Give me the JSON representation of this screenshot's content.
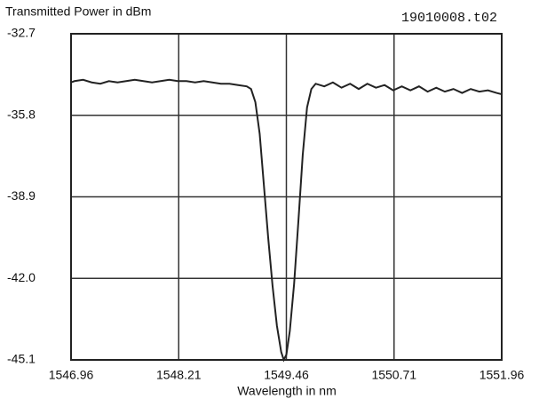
{
  "chart_data": {
    "type": "line",
    "title": "Transmitted Power in dBm",
    "subtitle": "19010008.t02",
    "xlabel": "Wavelength in nm",
    "color": "#222222",
    "grid": true,
    "x": [
      1546.96,
      1547.0,
      1547.1,
      1547.2,
      1547.3,
      1547.4,
      1547.5,
      1547.6,
      1547.7,
      1547.8,
      1547.9,
      1548.0,
      1548.1,
      1548.2,
      1548.3,
      1548.4,
      1548.5,
      1548.6,
      1548.7,
      1548.8,
      1548.9,
      1549.0,
      1549.05,
      1549.1,
      1549.15,
      1549.2,
      1549.25,
      1549.3,
      1549.35,
      1549.4,
      1549.43,
      1549.46,
      1549.5,
      1549.55,
      1549.6,
      1549.65,
      1549.7,
      1549.75,
      1549.8,
      1549.9,
      1550.0,
      1550.1,
      1550.2,
      1550.3,
      1550.4,
      1550.5,
      1550.6,
      1550.7,
      1550.8,
      1550.9,
      1551.0,
      1551.1,
      1551.2,
      1551.3,
      1551.4,
      1551.5,
      1551.6,
      1551.7,
      1551.8,
      1551.9,
      1551.96
    ],
    "values": [
      -34.55,
      -34.5,
      -34.45,
      -34.55,
      -34.6,
      -34.5,
      -34.55,
      -34.5,
      -34.45,
      -34.5,
      -34.55,
      -34.5,
      -34.45,
      -34.5,
      -34.5,
      -34.55,
      -34.5,
      -34.55,
      -34.6,
      -34.6,
      -34.65,
      -34.7,
      -34.8,
      -35.3,
      -36.5,
      -38.5,
      -40.5,
      -42.3,
      -43.8,
      -44.8,
      -45.1,
      -44.9,
      -44.0,
      -42.2,
      -39.8,
      -37.3,
      -35.5,
      -34.8,
      -34.6,
      -34.7,
      -34.55,
      -34.75,
      -34.6,
      -34.8,
      -34.6,
      -34.75,
      -34.65,
      -34.85,
      -34.7,
      -34.85,
      -34.7,
      -34.9,
      -34.75,
      -34.9,
      -34.8,
      -34.95,
      -34.8,
      -34.9,
      -34.85,
      -34.95,
      -35.0
    ],
    "xlim": [
      1546.96,
      1551.96
    ],
    "xticks": [
      1546.96,
      1548.21,
      1549.46,
      1550.71,
      1551.96
    ],
    "ylim": [
      -45.1,
      -32.7
    ],
    "yticks": [
      -45.1,
      {
        "value": -42,
        "label": "-42.0"
      },
      -38.9,
      -35.8,
      -32.7
    ]
  }
}
